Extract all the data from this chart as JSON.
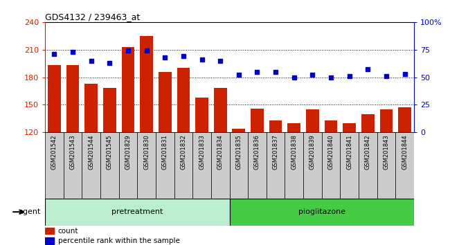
{
  "title": "GDS4132 / 239463_at",
  "categories": [
    "GSM201542",
    "GSM201543",
    "GSM201544",
    "GSM201545",
    "GSM201829",
    "GSM201830",
    "GSM201831",
    "GSM201832",
    "GSM201833",
    "GSM201834",
    "GSM201835",
    "GSM201836",
    "GSM201837",
    "GSM201838",
    "GSM201839",
    "GSM201840",
    "GSM201841",
    "GSM201842",
    "GSM201843",
    "GSM201844"
  ],
  "bar_values": [
    193,
    193,
    173,
    168,
    213,
    225,
    186,
    190,
    158,
    168,
    124,
    146,
    133,
    130,
    145,
    133,
    130,
    140,
    145,
    147
  ],
  "dot_values": [
    71,
    73,
    65,
    63,
    74,
    74,
    68,
    69,
    66,
    65,
    52,
    55,
    55,
    50,
    52,
    50,
    51,
    57,
    51,
    53
  ],
  "bar_color": "#cc2200",
  "dot_color": "#0000cc",
  "ylim_left": [
    120,
    240
  ],
  "ylim_right": [
    0,
    100
  ],
  "yticks_left": [
    120,
    150,
    180,
    210,
    240
  ],
  "yticks_right": [
    0,
    25,
    50,
    75,
    100
  ],
  "yticklabels_right": [
    "0",
    "25",
    "50",
    "75",
    "100%"
  ],
  "pretreatment_group": [
    0,
    9
  ],
  "pioglitazone_group": [
    10,
    19
  ],
  "group_label_pretreatment": "pretreatment",
  "group_label_pioglitazone": "pioglitazone",
  "group_color_pretreatment": "#bbeecc",
  "group_color_pioglitazone": "#44cc44",
  "agent_label": "agent",
  "legend_count": "count",
  "legend_percentile": "percentile rank within the sample",
  "col_bg_color": "#cccccc",
  "plot_bg": "#ffffff",
  "bar_width": 0.7,
  "dot_size": 5
}
